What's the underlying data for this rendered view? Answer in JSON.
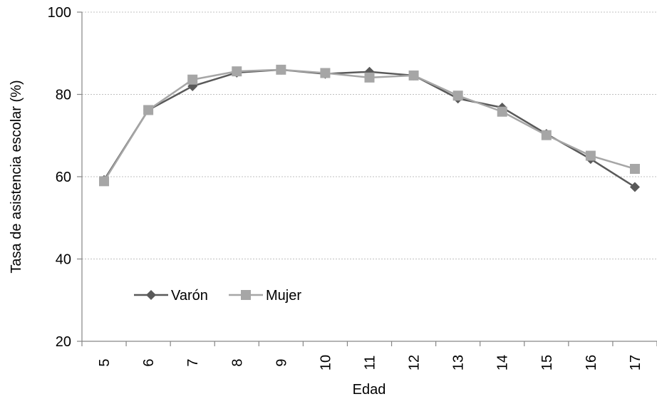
{
  "chart_data": {
    "type": "line",
    "xlabel": "Edad",
    "ylabel": "Tasa de asistencia escolar (%)",
    "categories": [
      "5",
      "6",
      "7",
      "8",
      "9",
      "10",
      "11",
      "12",
      "13",
      "14",
      "15",
      "16",
      "17"
    ],
    "ylim": [
      20,
      100
    ],
    "yticks": [
      20,
      40,
      60,
      80,
      100
    ],
    "grid": true,
    "legend_position": "bottom-left",
    "series": [
      {
        "name": "Varón",
        "color": "#595959",
        "marker": "diamond",
        "values": [
          59.2,
          76.2,
          82.0,
          85.3,
          86.0,
          85.0,
          85.5,
          84.6,
          79.0,
          76.8,
          70.4,
          64.3,
          57.5
        ]
      },
      {
        "name": "Mujer",
        "color": "#A6A6A6",
        "marker": "square",
        "values": [
          58.9,
          76.2,
          83.6,
          85.6,
          86.0,
          85.2,
          84.1,
          84.6,
          79.7,
          75.8,
          70.1,
          65.1,
          61.9
        ]
      }
    ]
  }
}
